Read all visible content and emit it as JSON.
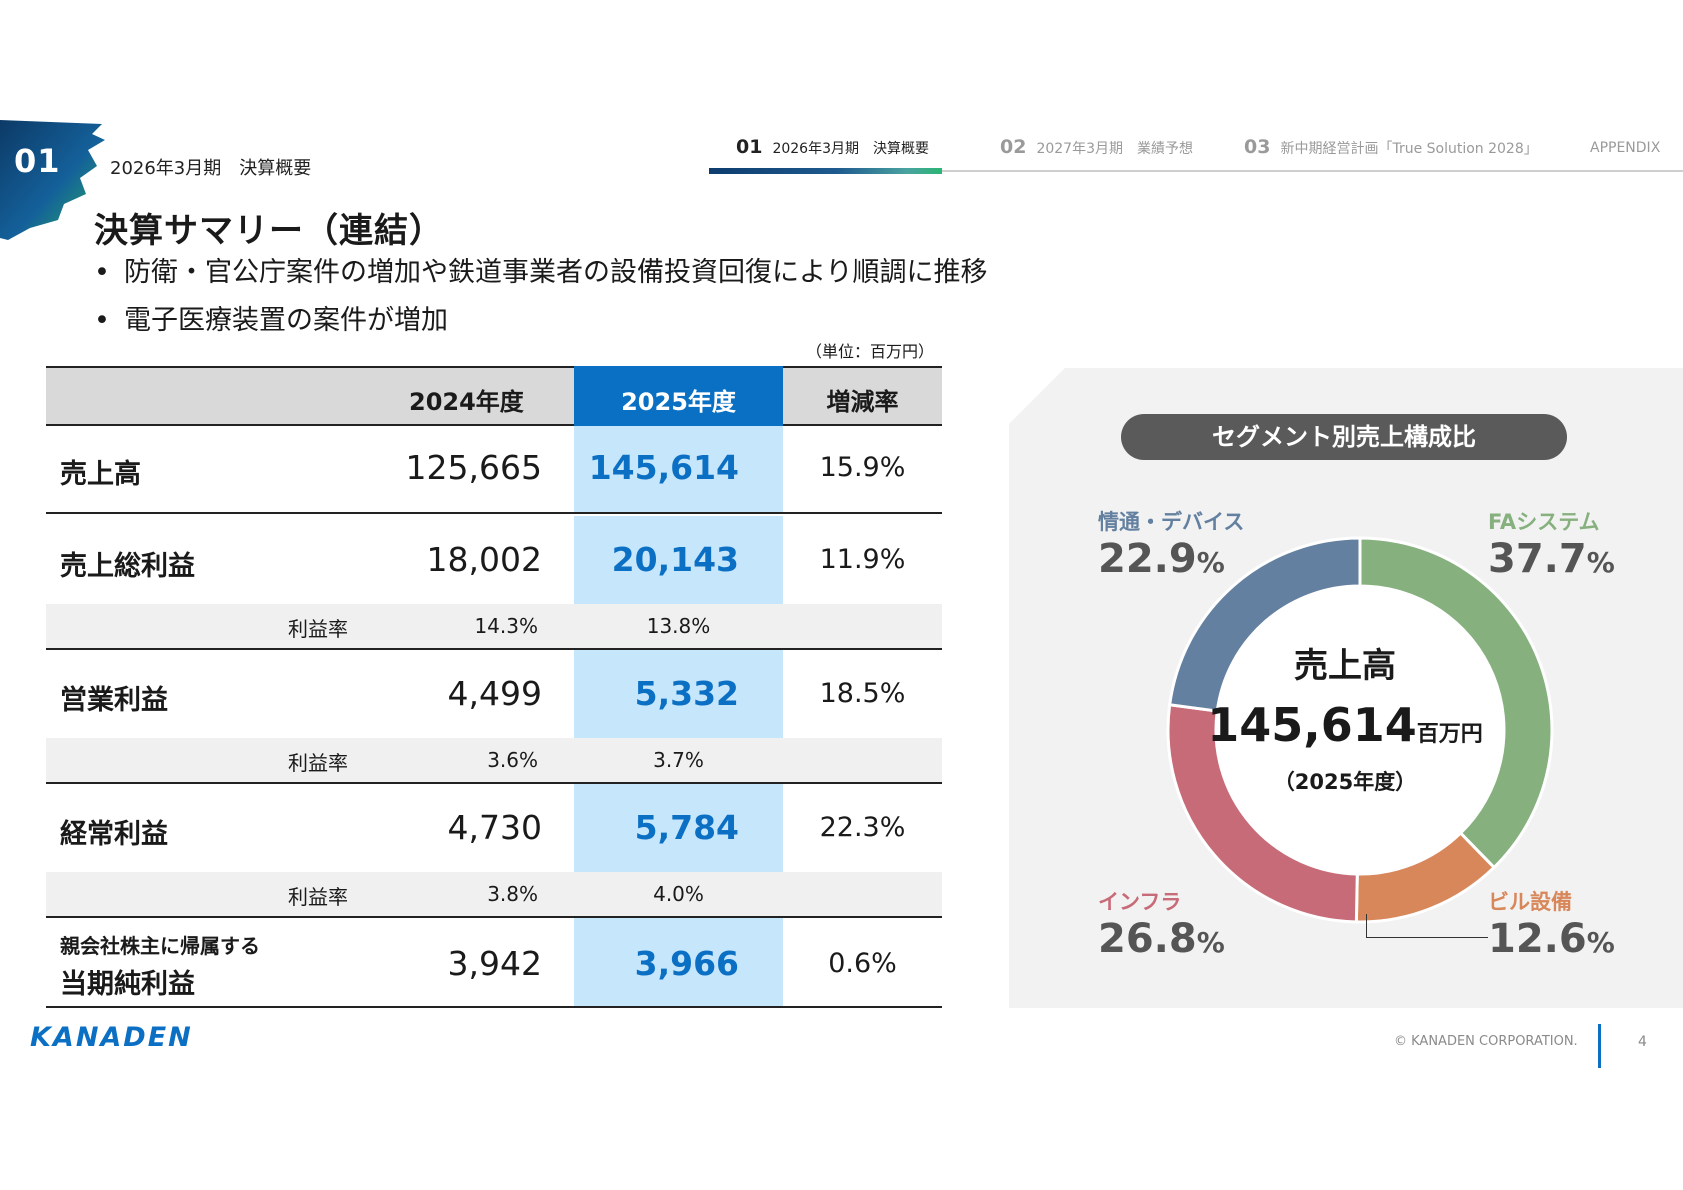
{
  "header": {
    "badge_number": "01",
    "section_label": "2026年3月期　決算概要"
  },
  "nav": {
    "items": [
      {
        "num": "01",
        "label": "2026年3月期　決算概要",
        "active": true
      },
      {
        "num": "02",
        "label": "2027年3月期　業績予想",
        "active": false
      },
      {
        "num": "03",
        "label": "新中期経営計画「True Solution 2028」",
        "active": false
      },
      {
        "num": "",
        "label": "APPENDIX",
        "active": false
      }
    ]
  },
  "title": "決算サマリー（連結）",
  "bullets": [
    "防衛・官公庁案件の増加や鉄道事業者の設備投資回復により順調に推移",
    "電子医療装置の案件が増加"
  ],
  "bullet_marker": "•",
  "unit_label": "（単位：百万円）",
  "table": {
    "headers": [
      "2024年度",
      "2025年度",
      "増減率"
    ],
    "rows": [
      {
        "label": "売上高",
        "v2024": "125,665",
        "v2025": "145,614",
        "rate": "15.9%"
      },
      {
        "label": "売上総利益",
        "v2024": "18,002",
        "v2025": "20,143",
        "rate": "11.9%",
        "sub": {
          "label": "利益率",
          "v2024": "14.3%",
          "v2025": "13.8%"
        }
      },
      {
        "label": "営業利益",
        "v2024": "4,499",
        "v2025": "5,332",
        "rate": "18.5%",
        "sub": {
          "label": "利益率",
          "v2024": "3.6%",
          "v2025": "3.7%"
        }
      },
      {
        "label": "経常利益",
        "v2024": "4,730",
        "v2025": "5,784",
        "rate": "22.3%",
        "sub": {
          "label": "利益率",
          "v2024": "3.8%",
          "v2025": "4.0%"
        }
      },
      {
        "label_line1": "親会社株主に帰属する",
        "label_line2": "当期純利益",
        "v2024": "3,942",
        "v2025": "3,966",
        "rate": "0.6%"
      }
    ]
  },
  "segment_chart": {
    "title": "セグメント別売上構成比",
    "center_title": "売上高",
    "center_value": "145,614",
    "center_unit": "百万円",
    "center_year": "（2025年度）",
    "percent_unit": "%",
    "segments": [
      {
        "name": "FAシステム",
        "value": "37.7",
        "pct": 37.7,
        "color": "#86b07e"
      },
      {
        "name": "ビル設備",
        "value": "12.6",
        "pct": 12.6,
        "color": "#d8875a"
      },
      {
        "name": "インフラ",
        "value": "26.8",
        "pct": 26.8,
        "color": "#c86b78"
      },
      {
        "name": "情通・デバイス",
        "value": "22.9",
        "pct": 22.9,
        "color": "#6480a0"
      }
    ]
  },
  "footer": {
    "logo": "KANADEN",
    "copyright": "© KANADEN CORPORATION.",
    "page_number": "4"
  },
  "colors": {
    "accent_blue": "#0b6fc4",
    "highlight_col": "#c5e6fb",
    "header_highlight": "#0a70c3"
  }
}
